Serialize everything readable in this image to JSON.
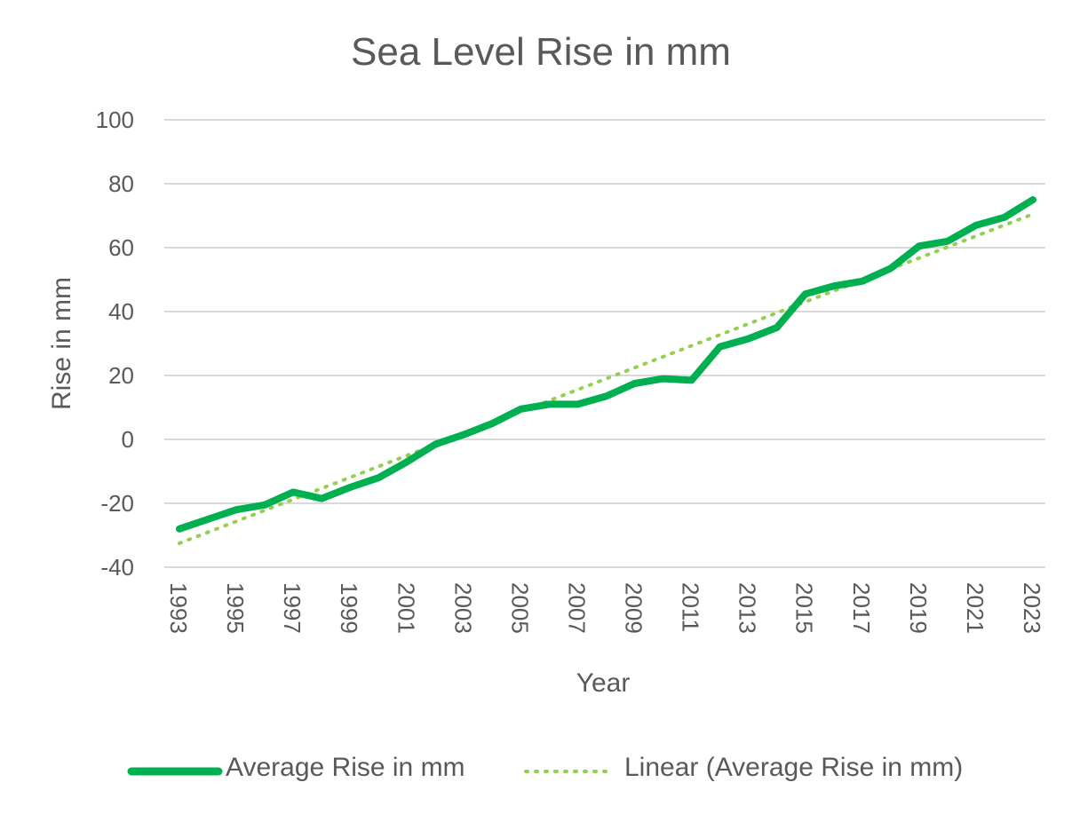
{
  "chart_data": {
    "type": "line",
    "title": "Sea Level Rise in mm",
    "xlabel": "Year",
    "ylabel": "Rise in mm",
    "ylim": [
      -40,
      100
    ],
    "yticks": [
      "100",
      "80",
      "60",
      "40",
      "20",
      "0",
      "-20",
      "-40"
    ],
    "xticks": [
      "1993",
      "1995",
      "1997",
      "1999",
      "2001",
      "2003",
      "2005",
      "2007",
      "2009",
      "2011",
      "2013",
      "2015",
      "2017",
      "2019",
      "2021",
      "2023"
    ],
    "x": [
      1993,
      1994,
      1995,
      1996,
      1997,
      1998,
      1999,
      2000,
      2001,
      2002,
      2003,
      2004,
      2005,
      2006,
      2007,
      2008,
      2009,
      2010,
      2011,
      2012,
      2013,
      2014,
      2015,
      2016,
      2017,
      2018,
      2019,
      2020,
      2021,
      2022,
      2023
    ],
    "grid": true,
    "legend": "bottom",
    "series": [
      {
        "name": "Average Rise in mm",
        "color": "#00b050",
        "style": "solid",
        "values": [
          -28,
          -25,
          -22,
          -20.5,
          -16.5,
          -18.5,
          -15,
          -12,
          -7,
          -1.5,
          1.5,
          5,
          9.5,
          11,
          11,
          13.5,
          17.5,
          19,
          18.5,
          29,
          31.5,
          35,
          45.5,
          48,
          49.5,
          53.5,
          60.5,
          62,
          67,
          69.5,
          75
        ]
      },
      {
        "name": "Linear (Average Rise in mm)",
        "color": "#92d050",
        "style": "dotted",
        "trendline": true,
        "start": -32.5,
        "end": 70.5
      }
    ]
  }
}
